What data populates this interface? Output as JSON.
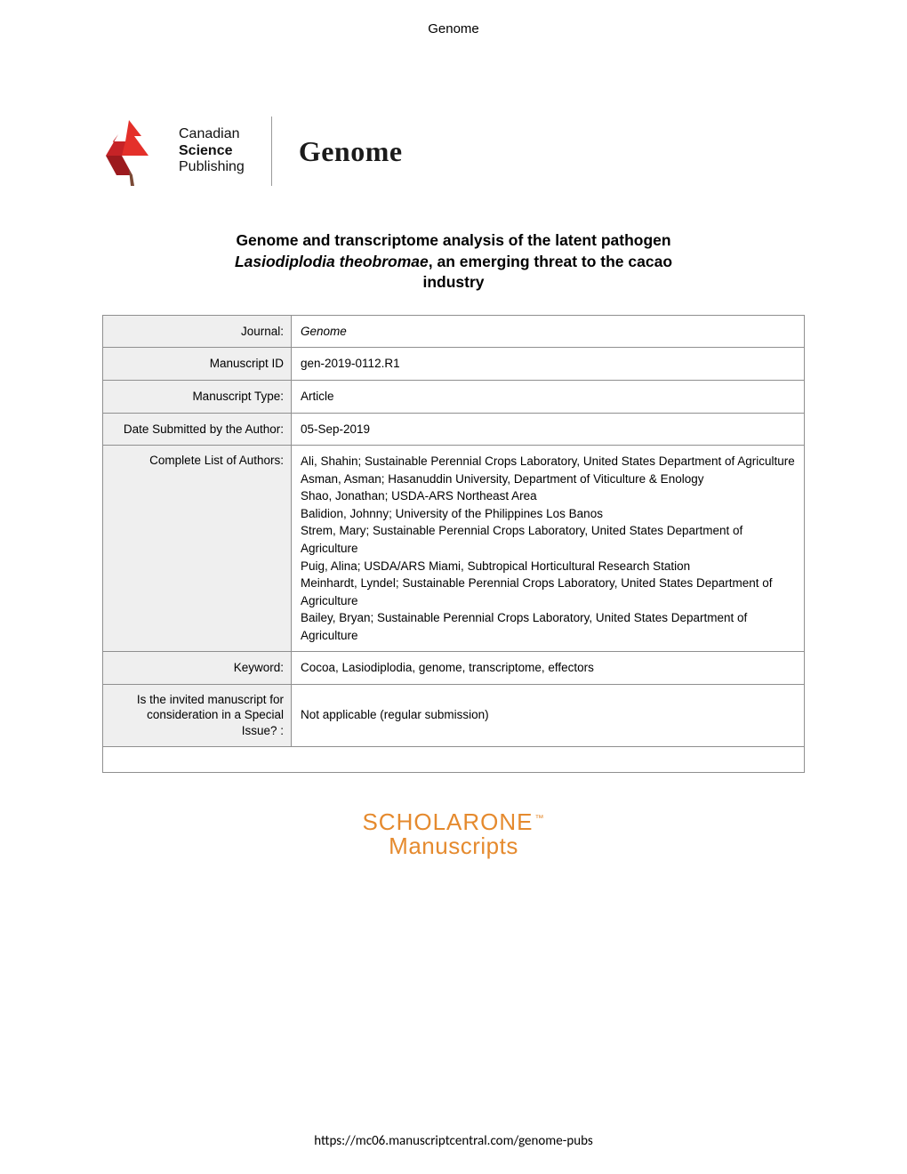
{
  "header": "Genome",
  "logo": {
    "publisher_line1": "Canadian",
    "publisher_line2": "Science",
    "publisher_line3": "Publishing",
    "journal_name": "Genome",
    "mark_colors": {
      "dark_red": "#9c1a1e",
      "mid_red": "#c62327",
      "bright_red": "#e4302a",
      "brown": "#7a4a36"
    }
  },
  "title": {
    "line1": "Genome and transcriptome analysis of the latent pathogen",
    "line2_italic": "Lasiodiplodia theobromae",
    "line2_rest": ", an emerging threat to the cacao",
    "line3": "industry"
  },
  "table": {
    "rows": [
      {
        "label": "Journal:",
        "value": "Genome",
        "italic": true
      },
      {
        "label": "Manuscript ID",
        "value": "gen-2019-0112.R1"
      },
      {
        "label": "Manuscript Type:",
        "value": "Article"
      },
      {
        "label": "Date Submitted by the Author:",
        "value": "05-Sep-2019"
      },
      {
        "label": "Complete List of Authors:",
        "value": "Ali, Shahin; Sustainable Perennial Crops Laboratory, United States Department of Agriculture\nAsman, Asman; Hasanuddin University, Department of Viticulture & Enology\nShao, Jonathan; USDA-ARS Northeast Area\nBalidion, Johnny; University of the Philippines Los Banos\nStrem, Mary; Sustainable Perennial Crops Laboratory, United States Department of Agriculture\nPuig, Alina; USDA/ARS Miami, Subtropical Horticultural Research Station\nMeinhardt, Lyndel; Sustainable Perennial Crops Laboratory, United States Department of Agriculture\nBailey, Bryan; Sustainable Perennial Crops Laboratory, United States Department of Agriculture",
        "authors": true
      },
      {
        "label": "Keyword:",
        "value": "Cocoa, Lasiodiplodia, genome, transcriptome, effectors"
      },
      {
        "label": "Is the invited manuscript for consideration in a Special Issue? :",
        "value": "Not applicable (regular submission)"
      }
    ]
  },
  "scholarone": {
    "line1": "SCHOLARONE",
    "tm": "™",
    "line2": "Manuscripts",
    "color": "#e58a2e"
  },
  "footer_url": "https://mc06.manuscriptcentral.com/genome-pubs"
}
